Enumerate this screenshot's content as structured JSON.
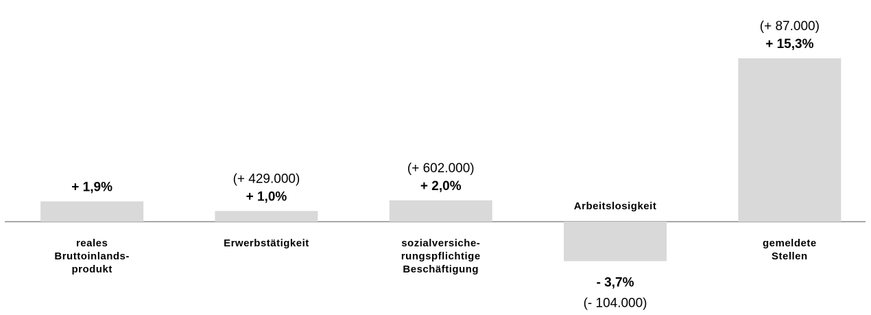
{
  "chart_data": {
    "type": "bar",
    "categories": [
      "reales\nBruttoinlands-\nprodukt",
      "Erwerbstätigkeit",
      "sozialversiche-\nrungspflichtige\nBeschäftigung",
      "Arbeitslosigkeit",
      "gemeldete\nStellen"
    ],
    "values": [
      1.9,
      1.0,
      2.0,
      -3.7,
      15.3
    ],
    "value_labels": [
      "+ 1,9%",
      "+ 1,0%",
      "+ 2,0%",
      "- 3,7%",
      "+ 15,3%"
    ],
    "absolute_labels": [
      null,
      "(+ 429.000)",
      "(+ 602.000)",
      "(- 104.000)",
      "(+ 87.000)"
    ],
    "color": "#d9d9d9"
  }
}
